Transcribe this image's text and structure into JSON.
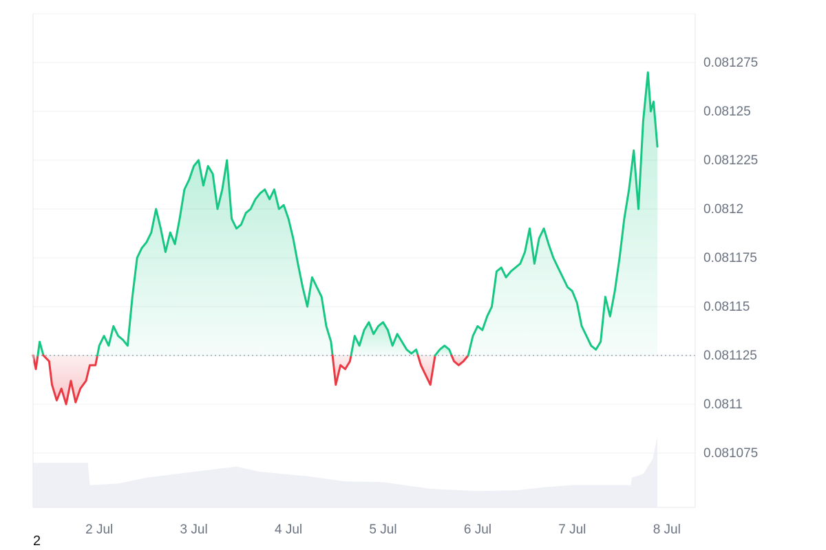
{
  "corner_label": "2",
  "colors": {
    "up_line": "#16c784",
    "down_line": "#ea3943",
    "up_fill": "#16c784",
    "down_fill": "#ea3943",
    "volume": "#eef0f5",
    "grid": "#eeeff2",
    "baseline": "#9ca3af"
  },
  "chart_data": {
    "type": "area",
    "baseline": 0.081125,
    "ylim": [
      0.08105,
      0.0813
    ],
    "y_ticks": [
      {
        "value": 0.081275,
        "label": "0.081275"
      },
      {
        "value": 0.08125,
        "label": "0.08125"
      },
      {
        "value": 0.081225,
        "label": "0.081225"
      },
      {
        "value": 0.0812,
        "label": "0.0812"
      },
      {
        "value": 0.081175,
        "label": "0.081175"
      },
      {
        "value": 0.08115,
        "label": "0.08115"
      },
      {
        "value": 0.081125,
        "label": "0.081125"
      },
      {
        "value": 0.0811,
        "label": "0.0811"
      },
      {
        "value": 0.081075,
        "label": "0.081075"
      }
    ],
    "xlim": [
      1.3,
      8.3
    ],
    "x_ticks": [
      {
        "value": 2,
        "label": "2 Jul"
      },
      {
        "value": 3,
        "label": "3 Jul"
      },
      {
        "value": 4,
        "label": "4 Jul"
      },
      {
        "value": 5,
        "label": "5 Jul"
      },
      {
        "value": 6,
        "label": "6 Jul"
      },
      {
        "value": 7,
        "label": "7 Jul"
      },
      {
        "value": 8,
        "label": "8 Jul"
      }
    ],
    "price": [
      [
        1.3,
        0.081125
      ],
      [
        1.33,
        0.081118
      ],
      [
        1.37,
        0.081132
      ],
      [
        1.41,
        0.081125
      ],
      [
        1.47,
        0.081122
      ],
      [
        1.5,
        0.08111
      ],
      [
        1.55,
        0.081102
      ],
      [
        1.6,
        0.081108
      ],
      [
        1.65,
        0.0811
      ],
      [
        1.7,
        0.081112
      ],
      [
        1.75,
        0.081101
      ],
      [
        1.8,
        0.081108
      ],
      [
        1.86,
        0.081112
      ],
      [
        1.9,
        0.08112
      ],
      [
        1.96,
        0.08112
      ],
      [
        2.0,
        0.08113
      ],
      [
        2.05,
        0.081135
      ],
      [
        2.1,
        0.08113
      ],
      [
        2.15,
        0.08114
      ],
      [
        2.2,
        0.081135
      ],
      [
        2.25,
        0.081133
      ],
      [
        2.3,
        0.08113
      ],
      [
        2.35,
        0.081155
      ],
      [
        2.4,
        0.081175
      ],
      [
        2.45,
        0.08118
      ],
      [
        2.5,
        0.081183
      ],
      [
        2.55,
        0.081188
      ],
      [
        2.6,
        0.0812
      ],
      [
        2.65,
        0.08119
      ],
      [
        2.7,
        0.081178
      ],
      [
        2.75,
        0.081188
      ],
      [
        2.8,
        0.081182
      ],
      [
        2.85,
        0.081195
      ],
      [
        2.9,
        0.08121
      ],
      [
        2.95,
        0.081215
      ],
      [
        3.0,
        0.081222
      ],
      [
        3.05,
        0.081225
      ],
      [
        3.1,
        0.081212
      ],
      [
        3.15,
        0.081222
      ],
      [
        3.2,
        0.081218
      ],
      [
        3.25,
        0.0812
      ],
      [
        3.3,
        0.08121
      ],
      [
        3.35,
        0.081225
      ],
      [
        3.4,
        0.081195
      ],
      [
        3.45,
        0.08119
      ],
      [
        3.5,
        0.081192
      ],
      [
        3.55,
        0.081198
      ],
      [
        3.6,
        0.0812
      ],
      [
        3.65,
        0.081205
      ],
      [
        3.7,
        0.081208
      ],
      [
        3.75,
        0.08121
      ],
      [
        3.8,
        0.081205
      ],
      [
        3.85,
        0.08121
      ],
      [
        3.9,
        0.0812
      ],
      [
        3.95,
        0.081202
      ],
      [
        4.0,
        0.081195
      ],
      [
        4.05,
        0.081185
      ],
      [
        4.1,
        0.081172
      ],
      [
        4.15,
        0.08116
      ],
      [
        4.2,
        0.08115
      ],
      [
        4.25,
        0.081165
      ],
      [
        4.3,
        0.08116
      ],
      [
        4.35,
        0.081155
      ],
      [
        4.4,
        0.08114
      ],
      [
        4.45,
        0.081132
      ],
      [
        4.5,
        0.08111
      ],
      [
        4.55,
        0.08112
      ],
      [
        4.6,
        0.081118
      ],
      [
        4.65,
        0.081122
      ],
      [
        4.7,
        0.081135
      ],
      [
        4.75,
        0.08113
      ],
      [
        4.8,
        0.081138
      ],
      [
        4.85,
        0.081142
      ],
      [
        4.9,
        0.081136
      ],
      [
        4.95,
        0.08114
      ],
      [
        5.0,
        0.081142
      ],
      [
        5.05,
        0.081138
      ],
      [
        5.1,
        0.08113
      ],
      [
        5.15,
        0.081136
      ],
      [
        5.2,
        0.081132
      ],
      [
        5.25,
        0.081128
      ],
      [
        5.3,
        0.081126
      ],
      [
        5.35,
        0.081128
      ],
      [
        5.4,
        0.08112
      ],
      [
        5.45,
        0.081115
      ],
      [
        5.5,
        0.08111
      ],
      [
        5.55,
        0.081125
      ],
      [
        5.6,
        0.081128
      ],
      [
        5.65,
        0.08113
      ],
      [
        5.7,
        0.081128
      ],
      [
        5.75,
        0.081122
      ],
      [
        5.8,
        0.08112
      ],
      [
        5.85,
        0.081122
      ],
      [
        5.9,
        0.081125
      ],
      [
        5.95,
        0.081135
      ],
      [
        6.0,
        0.08114
      ],
      [
        6.05,
        0.081138
      ],
      [
        6.1,
        0.081145
      ],
      [
        6.15,
        0.08115
      ],
      [
        6.2,
        0.081168
      ],
      [
        6.25,
        0.08117
      ],
      [
        6.3,
        0.081165
      ],
      [
        6.35,
        0.081168
      ],
      [
        6.4,
        0.08117
      ],
      [
        6.45,
        0.081172
      ],
      [
        6.5,
        0.081178
      ],
      [
        6.55,
        0.08119
      ],
      [
        6.6,
        0.081172
      ],
      [
        6.65,
        0.081185
      ],
      [
        6.7,
        0.08119
      ],
      [
        6.75,
        0.081182
      ],
      [
        6.8,
        0.081175
      ],
      [
        6.85,
        0.08117
      ],
      [
        6.9,
        0.081165
      ],
      [
        6.95,
        0.08116
      ],
      [
        7.0,
        0.081158
      ],
      [
        7.05,
        0.081152
      ],
      [
        7.1,
        0.08114
      ],
      [
        7.15,
        0.081135
      ],
      [
        7.2,
        0.08113
      ],
      [
        7.25,
        0.081128
      ],
      [
        7.3,
        0.081132
      ],
      [
        7.35,
        0.081155
      ],
      [
        7.4,
        0.081145
      ],
      [
        7.45,
        0.081158
      ],
      [
        7.5,
        0.081175
      ],
      [
        7.55,
        0.081195
      ],
      [
        7.6,
        0.08121
      ],
      [
        7.65,
        0.08123
      ],
      [
        7.7,
        0.0812
      ],
      [
        7.75,
        0.081245
      ],
      [
        7.8,
        0.08127
      ],
      [
        7.83,
        0.08125
      ],
      [
        7.86,
        0.081255
      ],
      [
        7.9,
        0.081232
      ]
    ],
    "volume": [
      [
        1.3,
        0.6
      ],
      [
        1.88,
        0.6
      ],
      [
        1.9,
        0.3
      ],
      [
        2.2,
        0.32
      ],
      [
        2.5,
        0.4
      ],
      [
        3.0,
        0.48
      ],
      [
        3.45,
        0.55
      ],
      [
        3.7,
        0.48
      ],
      [
        4.2,
        0.42
      ],
      [
        4.6,
        0.35
      ],
      [
        5.0,
        0.34
      ],
      [
        5.5,
        0.25
      ],
      [
        6.0,
        0.22
      ],
      [
        6.4,
        0.23
      ],
      [
        6.7,
        0.27
      ],
      [
        7.0,
        0.3
      ],
      [
        7.4,
        0.3
      ],
      [
        7.62,
        0.3
      ],
      [
        7.63,
        0.4
      ],
      [
        7.75,
        0.45
      ],
      [
        7.85,
        0.65
      ],
      [
        7.9,
        0.95
      ]
    ],
    "volume_max": 1.0
  }
}
